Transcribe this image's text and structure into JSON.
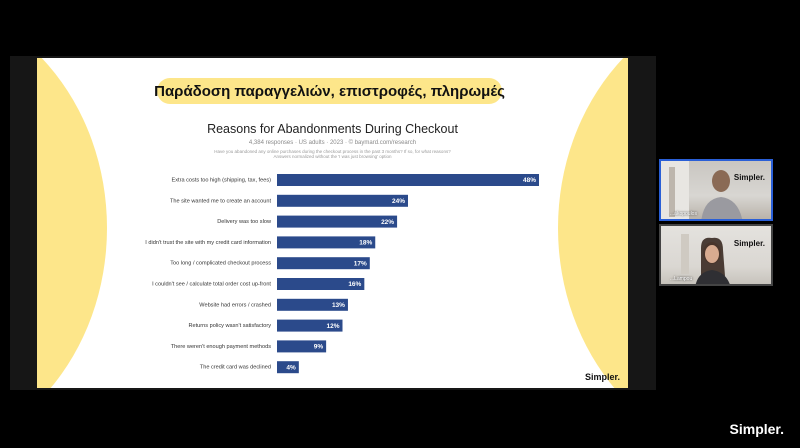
{
  "slide": {
    "heading": "Παράδοση παραγγελιών, επιστροφές, πληρωμές",
    "brand": "Simpler.",
    "accent_color": "#fde68a"
  },
  "chart_data": {
    "type": "bar",
    "orientation": "horizontal",
    "title": "Reasons for Abandonments During Checkout",
    "meta": "4,384 responses  ·  US adults  ·  2023  ·  ©  baymard.com/research",
    "note": [
      "Have you abandoned any online purchases during the checkout process in the past 3 months? If so, for what reasons?",
      "Answers normalized without the 'I was just browsing' option"
    ],
    "categories": [
      "Extra costs too high (shipping, tax, fees)",
      "The site wanted me to create an account",
      "Delivery was too slow",
      "I didn't trust the site with my credit card information",
      "Too long / complicated checkout process",
      "I couldn't see / calculate total order cost up-front",
      "Website had errors / crashed",
      "Returns policy wasn't satisfactory",
      "There weren't enough payment methods",
      "The credit card was declined"
    ],
    "values": [
      48,
      24,
      22,
      18,
      17,
      16,
      13,
      12,
      9,
      4
    ],
    "value_labels": [
      "48%",
      "24%",
      "22%",
      "18%",
      "17%",
      "16%",
      "13%",
      "12%",
      "9%",
      "4%"
    ],
    "bar_color": "#2b4a8b",
    "xlim": [
      0,
      50
    ]
  },
  "participants": [
    {
      "name": "...akopoulos",
      "brand": "Simpler."
    },
    {
      "name": "...Lampou",
      "brand": "Simpler."
    }
  ],
  "footer_brand": "Simpler."
}
